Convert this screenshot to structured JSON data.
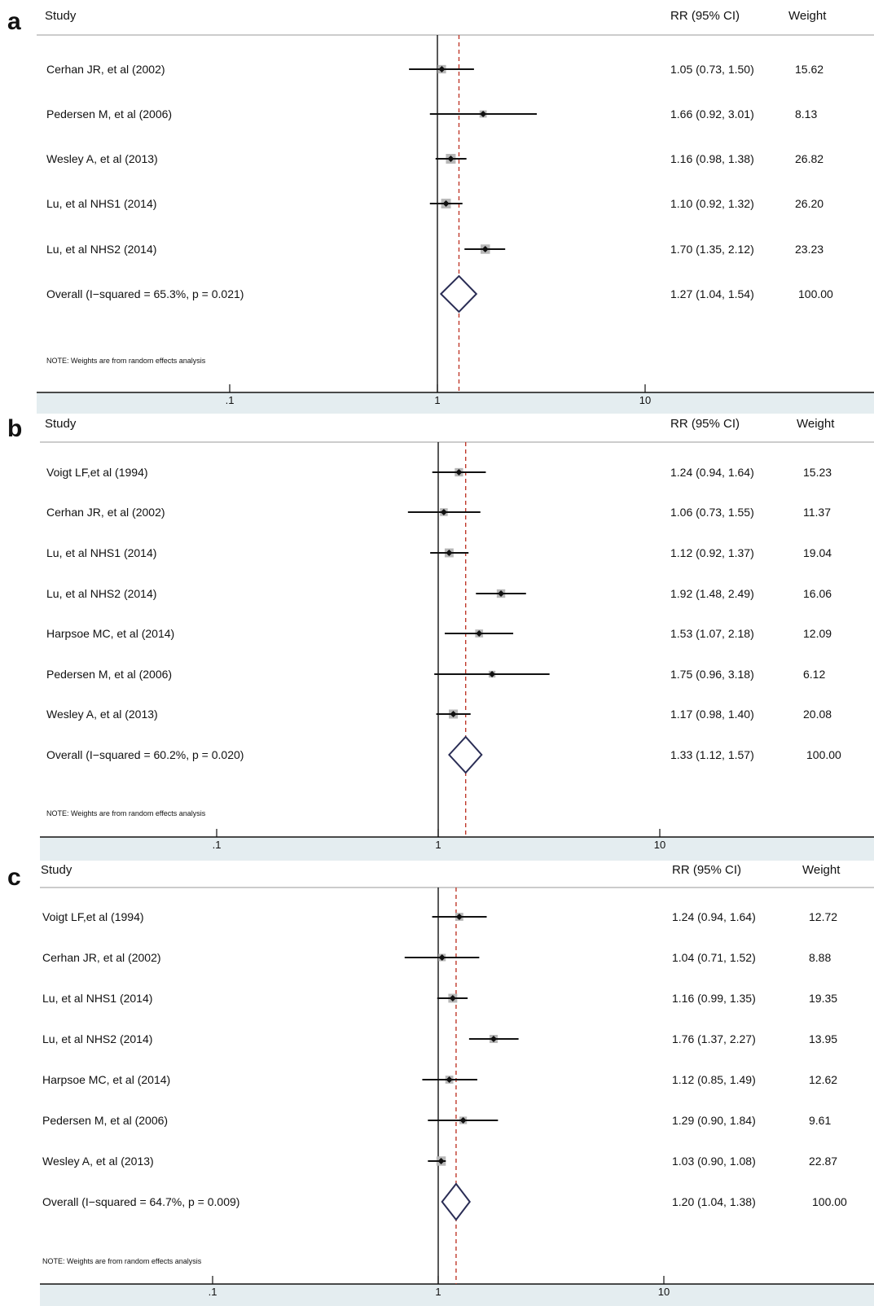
{
  "chart_data": [
    {
      "type": "forest",
      "panel": "a",
      "columns": {
        "study": "Study",
        "effect": "RR (95% CI)",
        "weight": "Weight"
      },
      "x_scale": "log",
      "xticks": [
        0.1,
        1,
        10
      ],
      "xtick_labels": [
        ".1",
        "1",
        "10"
      ],
      "studies": [
        {
          "label": "Cerhan JR, et al (2002)",
          "rr": 1.05,
          "lo": 0.73,
          "hi": 1.5,
          "ci_text": "1.05 (0.73, 1.50)",
          "weight": 15.62,
          "weight_text": "15.62"
        },
        {
          "label": "Pedersen M, et al (2006)",
          "rr": 1.66,
          "lo": 0.92,
          "hi": 3.01,
          "ci_text": "1.66 (0.92, 3.01)",
          "weight": 8.13,
          "weight_text": "8.13"
        },
        {
          "label": "Wesley A, et al (2013)",
          "rr": 1.16,
          "lo": 0.98,
          "hi": 1.38,
          "ci_text": "1.16 (0.98, 1.38)",
          "weight": 26.82,
          "weight_text": "26.82"
        },
        {
          "label": "Lu, et al NHS1 (2014)",
          "rr": 1.1,
          "lo": 0.92,
          "hi": 1.32,
          "ci_text": "1.10 (0.92, 1.32)",
          "weight": 26.2,
          "weight_text": "26.20"
        },
        {
          "label": "Lu, et al NHS2 (2014)",
          "rr": 1.7,
          "lo": 1.35,
          "hi": 2.12,
          "ci_text": "1.70 (1.35, 2.12)",
          "weight": 23.23,
          "weight_text": "23.23"
        }
      ],
      "overall": {
        "label": "Overall  (I−squared = 65.3%, p = 0.021)",
        "rr": 1.27,
        "lo": 1.04,
        "hi": 1.54,
        "ci_text": "1.27 (1.04, 1.54)",
        "weight_text": "100.00"
      },
      "note": "NOTE: Weights are from random effects analysis"
    },
    {
      "type": "forest",
      "panel": "b",
      "columns": {
        "study": "Study",
        "effect": "RR (95% CI)",
        "weight": "Weight"
      },
      "x_scale": "log",
      "xticks": [
        0.1,
        1,
        10
      ],
      "xtick_labels": [
        ".1",
        "1",
        "10"
      ],
      "studies": [
        {
          "label": "Voigt LF,et al (1994)",
          "rr": 1.24,
          "lo": 0.94,
          "hi": 1.64,
          "ci_text": "1.24 (0.94, 1.64)",
          "weight": 15.23,
          "weight_text": "15.23"
        },
        {
          "label": "Cerhan JR, et al (2002)",
          "rr": 1.06,
          "lo": 0.73,
          "hi": 1.55,
          "ci_text": "1.06 (0.73, 1.55)",
          "weight": 11.37,
          "weight_text": "11.37"
        },
        {
          "label": "Lu, et al NHS1 (2014)",
          "rr": 1.12,
          "lo": 0.92,
          "hi": 1.37,
          "ci_text": "1.12 (0.92, 1.37)",
          "weight": 19.04,
          "weight_text": "19.04"
        },
        {
          "label": "Lu, et al NHS2 (2014)",
          "rr": 1.92,
          "lo": 1.48,
          "hi": 2.49,
          "ci_text": "1.92 (1.48, 2.49)",
          "weight": 16.06,
          "weight_text": "16.06"
        },
        {
          "label": "Harpsoe MC, et al (2014)",
          "rr": 1.53,
          "lo": 1.07,
          "hi": 2.18,
          "ci_text": "1.53 (1.07, 2.18)",
          "weight": 12.09,
          "weight_text": "12.09"
        },
        {
          "label": "Pedersen M, et al (2006)",
          "rr": 1.75,
          "lo": 0.96,
          "hi": 3.18,
          "ci_text": "1.75 (0.96, 3.18)",
          "weight": 6.12,
          "weight_text": "6.12"
        },
        {
          "label": "Wesley A, et al (2013)",
          "rr": 1.17,
          "lo": 0.98,
          "hi": 1.4,
          "ci_text": "1.17 (0.98, 1.40)",
          "weight": 20.08,
          "weight_text": "20.08"
        }
      ],
      "overall": {
        "label": "Overall  (I−squared = 60.2%, p = 0.020)",
        "rr": 1.33,
        "lo": 1.12,
        "hi": 1.57,
        "ci_text": "1.33 (1.12, 1.57)",
        "weight_text": "100.00"
      },
      "note": "NOTE: Weights are from random effects analysis"
    },
    {
      "type": "forest",
      "panel": "c",
      "columns": {
        "study": "Study",
        "effect": "RR (95% CI)",
        "weight": "Weight"
      },
      "x_scale": "log",
      "xticks": [
        0.1,
        1,
        10
      ],
      "xtick_labels": [
        ".1",
        "1",
        "10"
      ],
      "studies": [
        {
          "label": "Voigt LF,et al (1994)",
          "rr": 1.24,
          "lo": 0.94,
          "hi": 1.64,
          "ci_text": "1.24 (0.94, 1.64)",
          "weight": 12.72,
          "weight_text": "12.72"
        },
        {
          "label": "Cerhan JR, et al (2002)",
          "rr": 1.04,
          "lo": 0.71,
          "hi": 1.52,
          "ci_text": "1.04 (0.71, 1.52)",
          "weight": 8.88,
          "weight_text": "8.88"
        },
        {
          "label": "Lu, et al NHS1 (2014)",
          "rr": 1.16,
          "lo": 0.99,
          "hi": 1.35,
          "ci_text": "1.16 (0.99, 1.35)",
          "weight": 19.35,
          "weight_text": "19.35"
        },
        {
          "label": "Lu, et al NHS2 (2014)",
          "rr": 1.76,
          "lo": 1.37,
          "hi": 2.27,
          "ci_text": "1.76 (1.37, 2.27)",
          "weight": 13.95,
          "weight_text": "13.95"
        },
        {
          "label": "Harpsoe MC, et al (2014)",
          "rr": 1.12,
          "lo": 0.85,
          "hi": 1.49,
          "ci_text": "1.12 (0.85, 1.49)",
          "weight": 12.62,
          "weight_text": "12.62"
        },
        {
          "label": "Pedersen M, et al (2006)",
          "rr": 1.29,
          "lo": 0.9,
          "hi": 1.84,
          "ci_text": "1.29 (0.90, 1.84)",
          "weight": 9.61,
          "weight_text": "9.61"
        },
        {
          "label": "Wesley A, et al (2013)",
          "rr": 1.03,
          "lo": 0.9,
          "hi": 1.08,
          "ci_text": "1.03 (0.90, 1.08)",
          "weight": 22.87,
          "weight_text": "22.87"
        }
      ],
      "overall": {
        "label": "Overall  (I−squared = 64.7%, p = 0.009)",
        "rr": 1.2,
        "lo": 1.04,
        "hi": 1.38,
        "ci_text": "1.20 (1.04, 1.38)",
        "weight_text": "100.00"
      },
      "note": "NOTE: Weights are from random effects analysis"
    }
  ],
  "colors": {
    "axis_strip": "#e4edf0",
    "weight_box": "#b8b8b8",
    "diamond": "#2a2d55",
    "overall_line": "#c0392b",
    "ink": "#111111",
    "header_rule": "#9a9a9a"
  }
}
